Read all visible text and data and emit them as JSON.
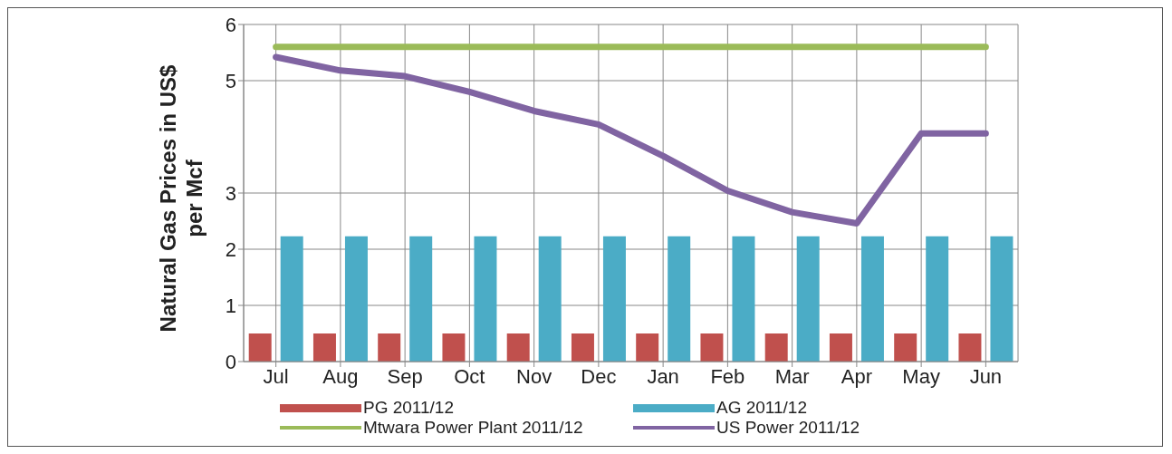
{
  "chart_data": {
    "type": "bar",
    "ylabel": "Natural Gas Prices in US$ per Mcf",
    "categories": [
      "Jul",
      "Aug",
      "Sep",
      "Oct",
      "Nov",
      "Dec",
      "Jan",
      "Feb",
      "Mar",
      "Apr",
      "May",
      "Jun"
    ],
    "series": [
      {
        "name": "PG 2011/12",
        "color": "#c0504d",
        "values": [
          0.5,
          0.5,
          0.5,
          0.5,
          0.5,
          0.5,
          0.5,
          0.5,
          0.5,
          0.5,
          0.5,
          0.5
        ]
      },
      {
        "name": "AG 2011/12",
        "color": "#4bacc6",
        "values": [
          2.23,
          2.23,
          2.23,
          2.23,
          2.23,
          2.23,
          2.23,
          2.23,
          2.23,
          2.23,
          2.23,
          2.23
        ]
      },
      {
        "name": "Mtwara Power Plant  2011/12",
        "type": "line",
        "color": "#9bbb59",
        "values": [
          5.6,
          5.6,
          5.6,
          5.6,
          5.6,
          5.6,
          5.6,
          5.6,
          5.6,
          5.6,
          5.6,
          5.6
        ]
      },
      {
        "name": "US Power 2011/12",
        "type": "line",
        "color": "#8064a2",
        "values": [
          5.42,
          5.18,
          5.08,
          4.8,
          4.46,
          4.22,
          3.66,
          3.04,
          2.66,
          2.46,
          4.06,
          4.06
        ]
      }
    ],
    "ylim": [
      0,
      6
    ],
    "yticks": [
      0,
      1,
      2,
      3,
      5,
      6
    ],
    "grid": true,
    "legend": "bottom",
    "marker": "none"
  }
}
